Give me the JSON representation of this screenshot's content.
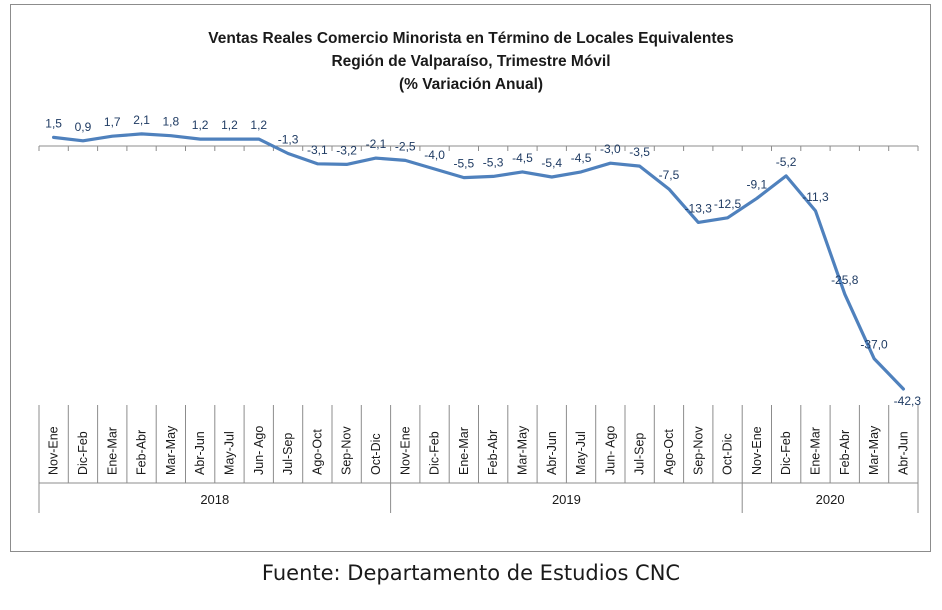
{
  "chart_data": {
    "type": "line",
    "title_lines": [
      "Ventas Reales Comercio Minorista  en Término de Locales Equivalentes",
      "Región de Valparaíso, Trimestre Móvil",
      "(% Variación Anual)"
    ],
    "categories": [
      "Nov-Ene",
      "Dic-Feb",
      "Ene-Mar",
      "Feb-Abr",
      "Mar-May",
      "Abr-Jun",
      "May-Jul",
      "Jun- Ago",
      "Jul-Sep",
      "Ago-Oct",
      "Sep-Nov",
      "Oct-Dic",
      "Nov-Ene",
      "Dic-Feb",
      "Ene-Mar",
      "Feb-Abr",
      "Mar-May",
      "Abr-Jun",
      "May-Jul",
      "Jun- Ago",
      "Jul-Sep",
      "Ago-Oct",
      "Sep-Nov",
      "Oct-Dic",
      "Nov-Ene",
      "Dic-Feb",
      "Ene-Mar",
      "Feb-Abr",
      "Mar-May",
      "Abr-Jun"
    ],
    "values": [
      1.5,
      0.9,
      1.7,
      2.1,
      1.8,
      1.2,
      1.2,
      1.2,
      -1.3,
      -3.1,
      -3.2,
      -2.1,
      -2.5,
      -4.0,
      -5.5,
      -5.3,
      -4.5,
      -5.4,
      -4.5,
      -3.0,
      -3.5,
      -7.5,
      -13.3,
      -12.5,
      -9.1,
      -5.2,
      -11.3,
      -25.8,
      -37.0,
      -42.3
    ],
    "value_labels": [
      "1,5",
      "0,9",
      "1,7",
      "2,1",
      "1,8",
      "1,2",
      "1,2",
      "1,2",
      "-1,3",
      "-3,1",
      "-3,2",
      "-2,1",
      "-2,5",
      "-4,0",
      "-5,5",
      "-5,3",
      "-4,5",
      "-5,4",
      "-4,5",
      "-3,0",
      "-3,5",
      "-7,5",
      "-13,3",
      "-12,5",
      "-9,1",
      "-5,2",
      "-11,3",
      "-25,8",
      "-37,0",
      "-42,3"
    ],
    "groups": [
      {
        "label": "2018",
        "start": 0,
        "count": 12
      },
      {
        "label": "2019",
        "start": 12,
        "count": 12
      },
      {
        "label": "2020",
        "start": 24,
        "count": 6
      }
    ],
    "ylim": [
      -42.3,
      2.1
    ],
    "line_color": "#4f81bd",
    "grid": false
  },
  "source": "Fuente: Departamento de Estudios CNC"
}
